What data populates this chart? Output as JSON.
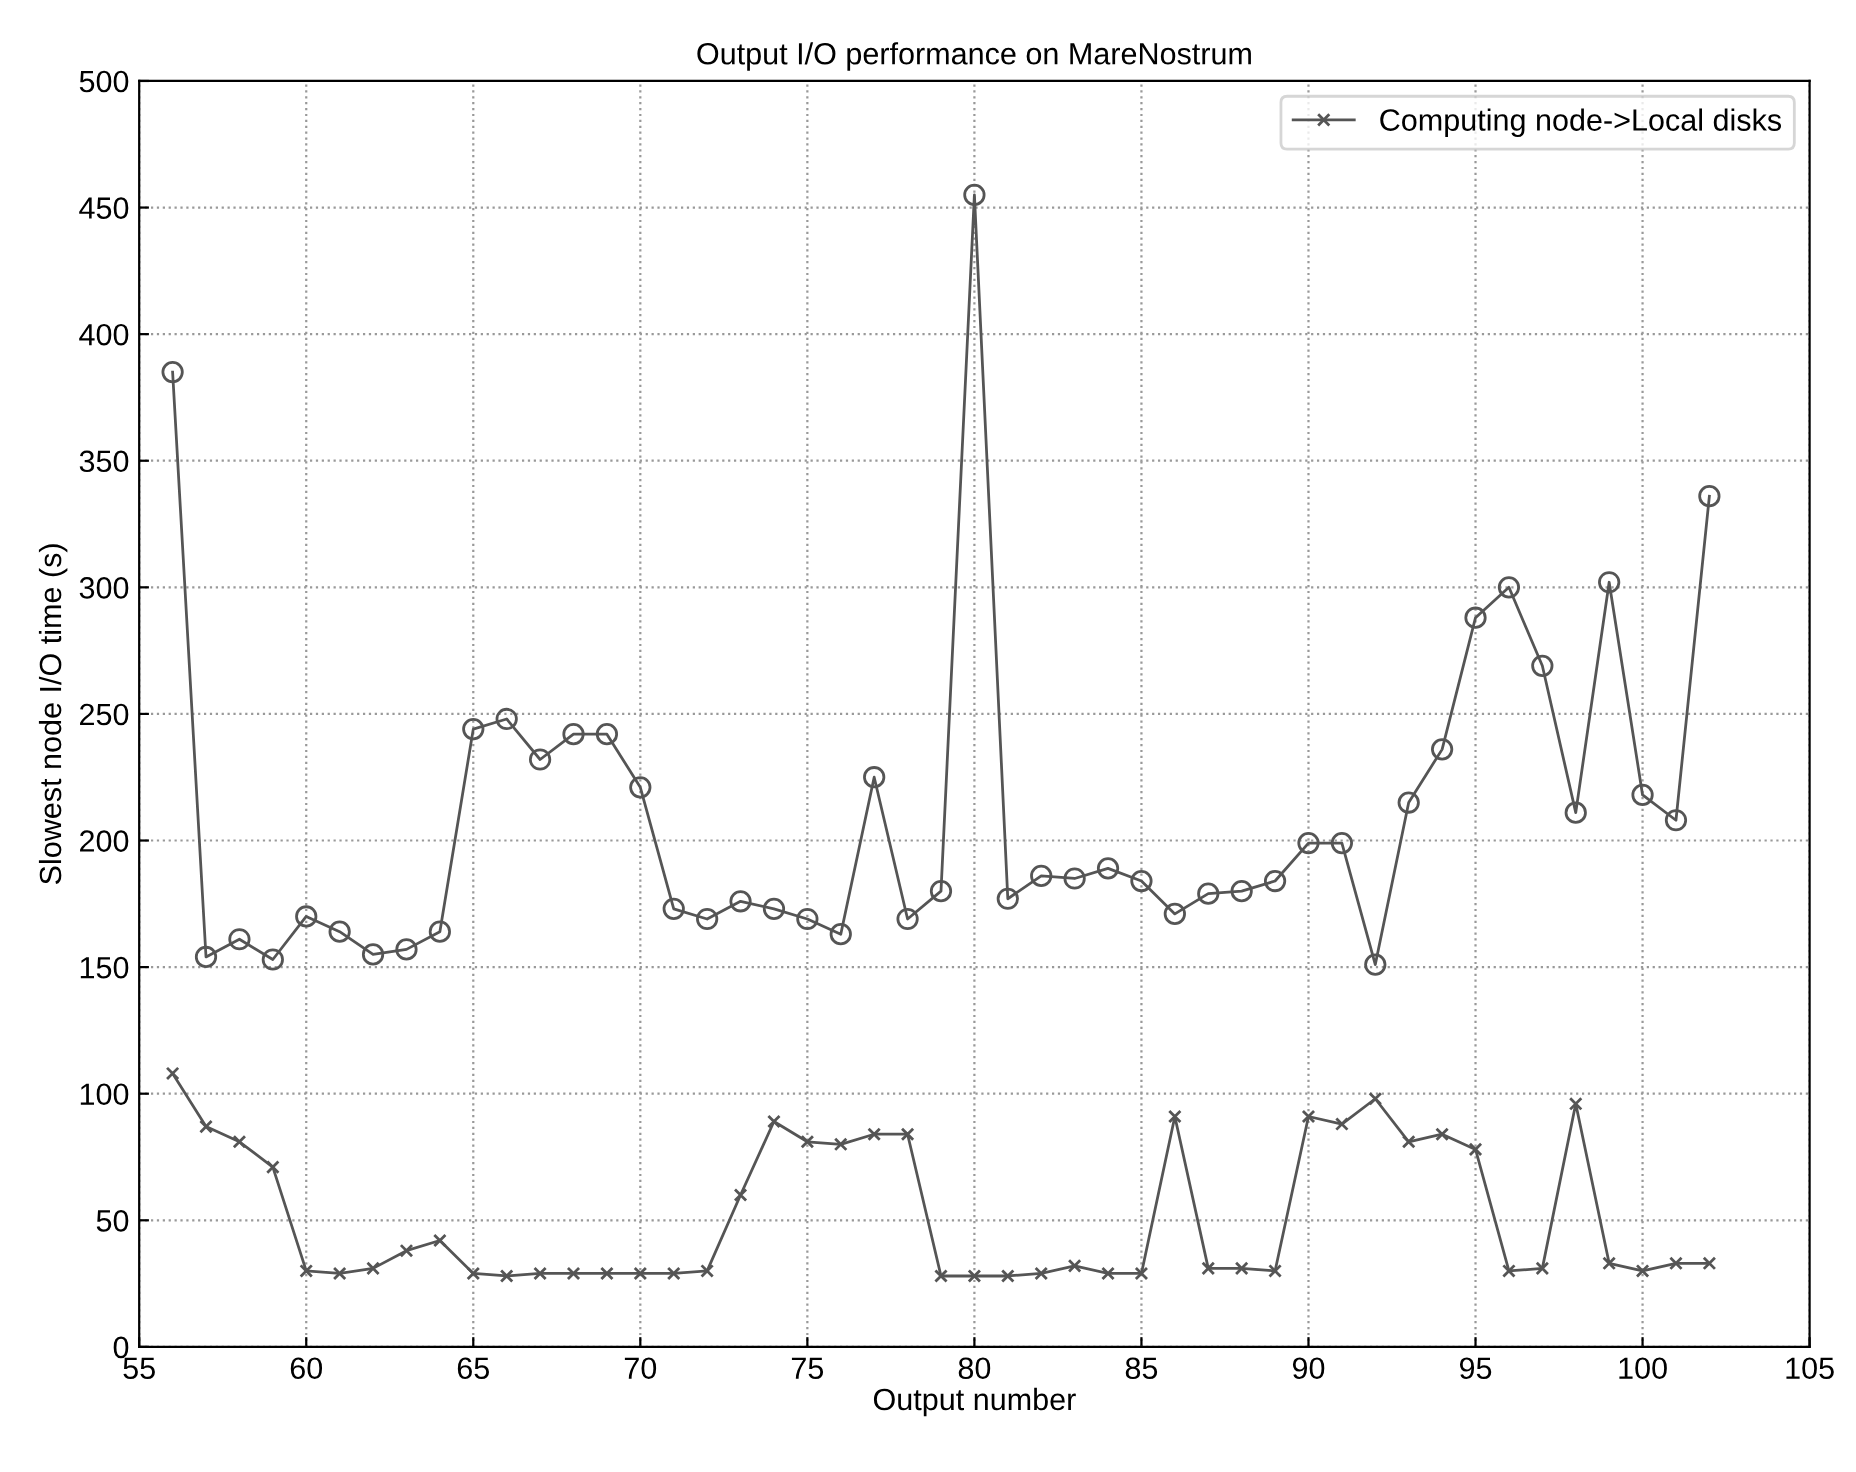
{
  "chart_data": {
    "type": "line",
    "title": "Output I/O performance on MareNostrum",
    "xlabel": "Output number",
    "ylabel": "Slowest node I/O time (s)",
    "x": [
      56,
      57,
      58,
      59,
      60,
      61,
      62,
      63,
      64,
      65,
      66,
      67,
      68,
      69,
      70,
      71,
      72,
      73,
      74,
      75,
      76,
      77,
      78,
      79,
      80,
      81,
      82,
      83,
      84,
      85,
      86,
      87,
      88,
      89,
      90,
      91,
      92,
      93,
      94,
      95,
      96,
      97,
      98,
      99,
      100,
      101,
      102
    ],
    "series": [
      {
        "name": "Computing node->Local disks",
        "color": "#555555",
        "marker": "cross",
        "values": [
          108,
          87,
          81,
          71,
          30,
          29,
          31,
          38,
          42,
          29,
          28,
          29,
          29,
          29,
          29,
          29,
          30,
          60,
          89,
          81,
          80,
          84,
          84,
          28,
          28,
          28,
          29,
          32,
          29,
          29,
          91,
          31,
          31,
          30,
          91,
          88,
          98,
          81,
          84,
          78,
          30,
          31,
          96,
          33,
          30,
          33,
          33
        ]
      },
      {
        "color": "#555555",
        "marker": "circle",
        "values": [
          385,
          154,
          161,
          153,
          170,
          164,
          155,
          157,
          164,
          244,
          248,
          232,
          242,
          242,
          221,
          173,
          169,
          176,
          173,
          169,
          163,
          225,
          169,
          180,
          455,
          177,
          186,
          185,
          189,
          184,
          171,
          179,
          180,
          184,
          199,
          199,
          151,
          215,
          236,
          288,
          300,
          269,
          211,
          302,
          218,
          208,
          336
        ]
      }
    ],
    "xlim": [
      55,
      105
    ],
    "xticks": [
      55,
      60,
      65,
      70,
      75,
      80,
      85,
      90,
      95,
      100,
      105
    ],
    "ylim": [
      0,
      500
    ],
    "yticks": [
      0,
      50,
      100,
      150,
      200,
      250,
      300,
      350,
      400,
      450,
      500
    ],
    "grid": true,
    "legend": "top right",
    "line_style": "solid"
  }
}
